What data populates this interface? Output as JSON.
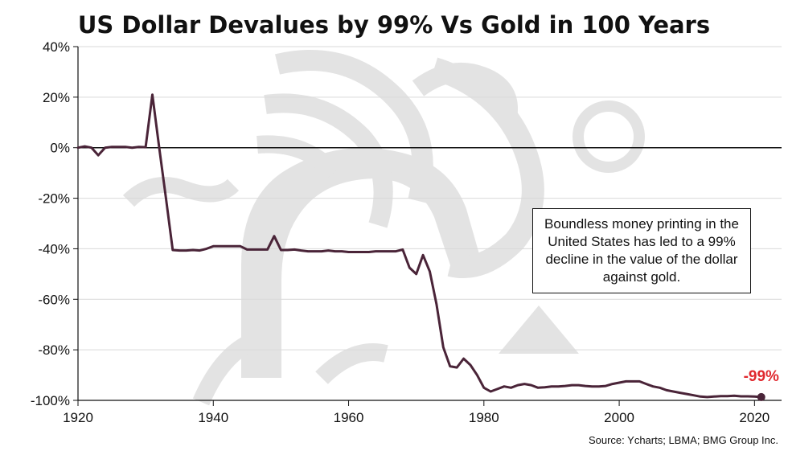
{
  "title": "US Dollar Devalues by 99% Vs Gold in 100 Years",
  "callout": "Boundless money printing in the United States has led to a 99% decline in the value of the dollar against gold.",
  "source": "Source: Ycharts; LBMA; BMG Group Inc.",
  "colors": {
    "line": "#4a2438",
    "end_label": "#e0282e",
    "grid": "#d9d9d9",
    "watermark": "#e3e3e3"
  },
  "chart_data": {
    "type": "line",
    "title": "US Dollar Devalues by 99% Vs Gold in 100 Years",
    "xlabel": "",
    "ylabel": "",
    "xlim": [
      1920,
      2024
    ],
    "ylim": [
      -100,
      40
    ],
    "x_ticks": [
      1920,
      1940,
      1960,
      1980,
      2000,
      2020
    ],
    "y_ticks": [
      40,
      20,
      0,
      -20,
      -40,
      -60,
      -80,
      -100
    ],
    "y_tick_labels": [
      "40%",
      "20%",
      "0%",
      "-20%",
      "-40%",
      "-60%",
      "-80%",
      "-100%"
    ],
    "grid": "horizontal",
    "series": [
      {
        "name": "",
        "x": [
          1920,
          1921,
          1922,
          1923,
          1924,
          1925,
          1926,
          1927,
          1928,
          1929,
          1930,
          1931,
          1932,
          1933,
          1934,
          1935,
          1936,
          1937,
          1938,
          1939,
          1940,
          1941,
          1942,
          1943,
          1944,
          1945,
          1946,
          1947,
          1948,
          1949,
          1950,
          1951,
          1952,
          1953,
          1954,
          1955,
          1956,
          1957,
          1958,
          1959,
          1960,
          1961,
          1962,
          1963,
          1964,
          1965,
          1966,
          1967,
          1968,
          1969,
          1970,
          1971,
          1972,
          1973,
          1974,
          1975,
          1976,
          1977,
          1978,
          1979,
          1980,
          1981,
          1982,
          1983,
          1984,
          1985,
          1986,
          1987,
          1988,
          1989,
          1990,
          1991,
          1992,
          1993,
          1994,
          1995,
          1996,
          1997,
          1998,
          1999,
          2000,
          2001,
          2002,
          2003,
          2004,
          2005,
          2006,
          2007,
          2008,
          2009,
          2010,
          2011,
          2012,
          2013,
          2014,
          2015,
          2016,
          2017,
          2018,
          2019,
          2020,
          2021
        ],
        "values": [
          0,
          0.5,
          0,
          -3,
          0,
          0.3,
          0.3,
          0.3,
          0,
          0.3,
          0.2,
          21,
          0,
          -20,
          -40.5,
          -40.7,
          -40.7,
          -40.5,
          -40.7,
          -40,
          -39,
          -39,
          -39,
          -39,
          -39,
          -40.3,
          -40.3,
          -40.3,
          -40.3,
          -35,
          -40.5,
          -40.5,
          -40.3,
          -40.7,
          -41,
          -41,
          -41,
          -40.7,
          -41,
          -41,
          -41.3,
          -41.3,
          -41.3,
          -41.3,
          -41,
          -41,
          -41,
          -41,
          -40.3,
          -47.5,
          -50,
          -42.5,
          -49,
          -62,
          -79,
          -86.5,
          -87,
          -83.5,
          -86,
          -90,
          -95,
          -96.5,
          -95.5,
          -94.5,
          -95,
          -94,
          -93.5,
          -94,
          -95,
          -94.8,
          -94.5,
          -94.5,
          -94.3,
          -94,
          -94,
          -94.3,
          -94.5,
          -94.5,
          -94.3,
          -93.5,
          -93,
          -92.5,
          -92.5,
          -92.5,
          -93.5,
          -94.5,
          -95,
          -96,
          -96.5,
          -97,
          -97.5,
          -98,
          -98.5,
          -98.7,
          -98.5,
          -98.3,
          -98.3,
          -98.2,
          -98.4,
          -98.4,
          -98.5,
          -98.7
        ]
      }
    ],
    "annotations": [
      {
        "x": 2021,
        "y": -98.7,
        "label": "-99%"
      }
    ]
  }
}
